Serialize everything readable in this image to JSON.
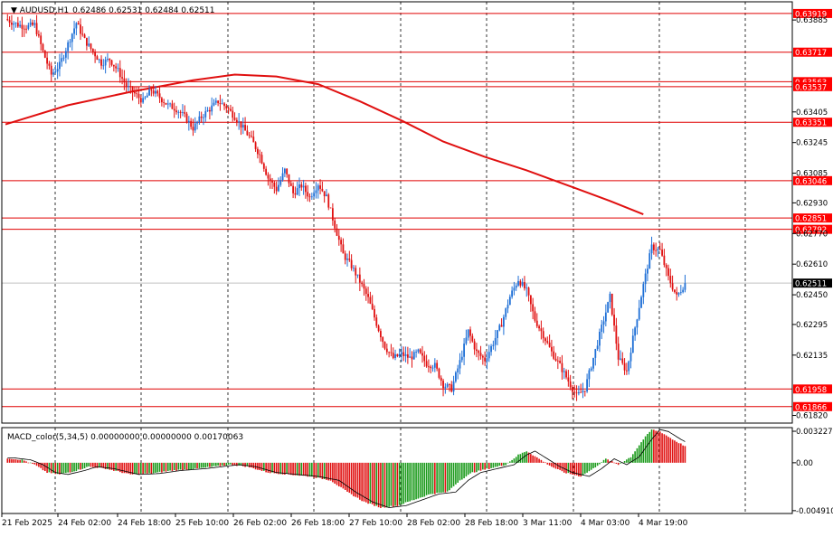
{
  "chart_data": {
    "type": "candlestick",
    "symbol_header": "AUDUSD,H1",
    "ohlc_header": "0.62486 0.62531 0.62484 0.62511",
    "price_axis_ticks": [
      "0.63885",
      "0.63405",
      "0.63245",
      "0.63085",
      "0.62930",
      "0.62770",
      "0.62610",
      "0.62450",
      "0.62295",
      "0.62135",
      "0.61820"
    ],
    "price_range": [
      0.6178,
      0.6398
    ],
    "horizontal_levels": [
      {
        "label": "0.63919",
        "price": 0.63919
      },
      {
        "label": "0.63717",
        "price": 0.63717
      },
      {
        "label": "0.63563",
        "price": 0.63563
      },
      {
        "label": "0.63537",
        "price": 0.63537
      },
      {
        "label": "0.63351",
        "price": 0.63351
      },
      {
        "label": "0.63046",
        "price": 0.63046
      },
      {
        "label": "0.62851",
        "price": 0.62851
      },
      {
        "label": "0.62792",
        "price": 0.62792
      },
      {
        "label": "0.61958",
        "price": 0.61958
      },
      {
        "label": "0.61866",
        "price": 0.61866
      }
    ],
    "current_price": {
      "label": "0.62511",
      "price": 0.62511
    },
    "time_axis_labels": [
      "21 Feb 2025",
      "24 Feb 02:00",
      "24 Feb 18:00",
      "25 Feb 10:00",
      "26 Feb 02:00",
      "26 Feb 18:00",
      "27 Feb 10:00",
      "28 Feb 02:00",
      "28 Feb 18:00",
      "3 Mar 11:00",
      "4 Mar 03:00",
      "4 Mar 19:00"
    ],
    "close_path": [
      [
        0,
        0.6389
      ],
      [
        6,
        0.6386
      ],
      [
        10,
        0.6385
      ],
      [
        14,
        0.6386
      ],
      [
        18,
        0.6372
      ],
      [
        22,
        0.636
      ],
      [
        26,
        0.6365
      ],
      [
        30,
        0.6376
      ],
      [
        34,
        0.6387
      ],
      [
        38,
        0.6378
      ],
      [
        42,
        0.6372
      ],
      [
        46,
        0.6366
      ],
      [
        50,
        0.6368
      ],
      [
        54,
        0.6362
      ],
      [
        58,
        0.6354
      ],
      [
        62,
        0.635
      ],
      [
        66,
        0.6346
      ],
      [
        70,
        0.6352
      ],
      [
        74,
        0.6348
      ],
      [
        78,
        0.6344
      ],
      [
        82,
        0.6342
      ],
      [
        86,
        0.6338
      ],
      [
        90,
        0.6332
      ],
      [
        94,
        0.6338
      ],
      [
        98,
        0.6342
      ],
      [
        102,
        0.6346
      ],
      [
        106,
        0.6343
      ],
      [
        110,
        0.6338
      ],
      [
        114,
        0.6332
      ],
      [
        118,
        0.6326
      ],
      [
        122,
        0.6318
      ],
      [
        126,
        0.6306
      ],
      [
        130,
        0.63
      ],
      [
        134,
        0.631
      ],
      [
        138,
        0.6298
      ],
      [
        142,
        0.6302
      ],
      [
        146,
        0.6296
      ],
      [
        150,
        0.6303
      ],
      [
        154,
        0.6296
      ],
      [
        158,
        0.6281
      ],
      [
        162,
        0.6266
      ],
      [
        166,
        0.626
      ],
      [
        170,
        0.6252
      ],
      [
        174,
        0.6243
      ],
      [
        178,
        0.623
      ],
      [
        182,
        0.6218
      ],
      [
        186,
        0.6212
      ],
      [
        190,
        0.6214
      ],
      [
        194,
        0.6212
      ],
      [
        198,
        0.6215
      ],
      [
        202,
        0.6209
      ],
      [
        206,
        0.6208
      ],
      [
        210,
        0.6198
      ],
      [
        214,
        0.6196
      ],
      [
        218,
        0.621
      ],
      [
        222,
        0.6226
      ],
      [
        226,
        0.6215
      ],
      [
        230,
        0.6211
      ],
      [
        234,
        0.622
      ],
      [
        238,
        0.623
      ],
      [
        242,
        0.6244
      ],
      [
        246,
        0.6253
      ],
      [
        250,
        0.6247
      ],
      [
        254,
        0.6232
      ],
      [
        258,
        0.6224
      ],
      [
        262,
        0.6215
      ],
      [
        266,
        0.6208
      ],
      [
        270,
        0.62
      ],
      [
        274,
        0.6192
      ],
      [
        278,
        0.6196
      ],
      [
        282,
        0.6212
      ],
      [
        286,
        0.6228
      ],
      [
        290,
        0.6244
      ],
      [
        294,
        0.6212
      ],
      [
        298,
        0.6205
      ],
      [
        302,
        0.6228
      ],
      [
        306,
        0.625
      ],
      [
        310,
        0.627
      ],
      [
        314,
        0.6268
      ],
      [
        318,
        0.6254
      ],
      [
        322,
        0.6244
      ],
      [
        326,
        0.6251
      ]
    ],
    "ma_path": [
      [
        0,
        0.6334
      ],
      [
        30,
        0.6344
      ],
      [
        60,
        0.6351
      ],
      [
        90,
        0.6357
      ],
      [
        110,
        0.636
      ],
      [
        130,
        0.6359
      ],
      [
        150,
        0.6355
      ],
      [
        170,
        0.6346
      ],
      [
        190,
        0.6336
      ],
      [
        210,
        0.6325
      ],
      [
        230,
        0.6317
      ],
      [
        250,
        0.631
      ],
      [
        270,
        0.6302
      ],
      [
        290,
        0.6294
      ],
      [
        306,
        0.6287
      ]
    ],
    "macd": {
      "label": "MACD_color(5,34,5) 0.00000000 0.00000000 0.00170063",
      "axis_ticks": [
        {
          "label": "0.0032271",
          "value": 0.0032271
        },
        {
          "label": "0.00",
          "value": 0.0
        },
        {
          "label": "-0.004910",
          "value": -0.00491
        }
      ],
      "range": [
        -0.0052,
        0.0036
      ],
      "histogram_path": [
        [
          0,
          0.0005
        ],
        [
          8,
          0.0003
        ],
        [
          14,
          -0.0002
        ],
        [
          20,
          -0.001
        ],
        [
          26,
          -0.0012
        ],
        [
          34,
          -0.0008
        ],
        [
          40,
          -0.0004
        ],
        [
          48,
          -0.0006
        ],
        [
          60,
          -0.0012
        ],
        [
          70,
          -0.0011
        ],
        [
          80,
          -0.0008
        ],
        [
          92,
          -0.0006
        ],
        [
          100,
          -0.0004
        ],
        [
          108,
          -0.0002
        ],
        [
          116,
          -0.0004
        ],
        [
          126,
          -0.001
        ],
        [
          136,
          -0.0012
        ],
        [
          146,
          -0.0014
        ],
        [
          156,
          -0.0018
        ],
        [
          164,
          -0.003
        ],
        [
          172,
          -0.004
        ],
        [
          180,
          -0.0046
        ],
        [
          188,
          -0.0044
        ],
        [
          196,
          -0.0038
        ],
        [
          204,
          -0.0032
        ],
        [
          212,
          -0.003
        ],
        [
          218,
          -0.0018
        ],
        [
          224,
          -0.001
        ],
        [
          232,
          -0.0006
        ],
        [
          240,
          -0.0002
        ],
        [
          246,
          0.0008
        ],
        [
          250,
          0.0012
        ],
        [
          256,
          0.0004
        ],
        [
          262,
          -0.0004
        ],
        [
          268,
          -0.001
        ],
        [
          276,
          -0.0014
        ],
        [
          282,
          -0.0006
        ],
        [
          288,
          0.0004
        ],
        [
          294,
          -0.0002
        ],
        [
          300,
          0.0006
        ],
        [
          306,
          0.0024
        ],
        [
          310,
          0.0034
        ],
        [
          314,
          0.0032
        ],
        [
          320,
          0.0024
        ],
        [
          326,
          0.0017
        ]
      ]
    }
  }
}
